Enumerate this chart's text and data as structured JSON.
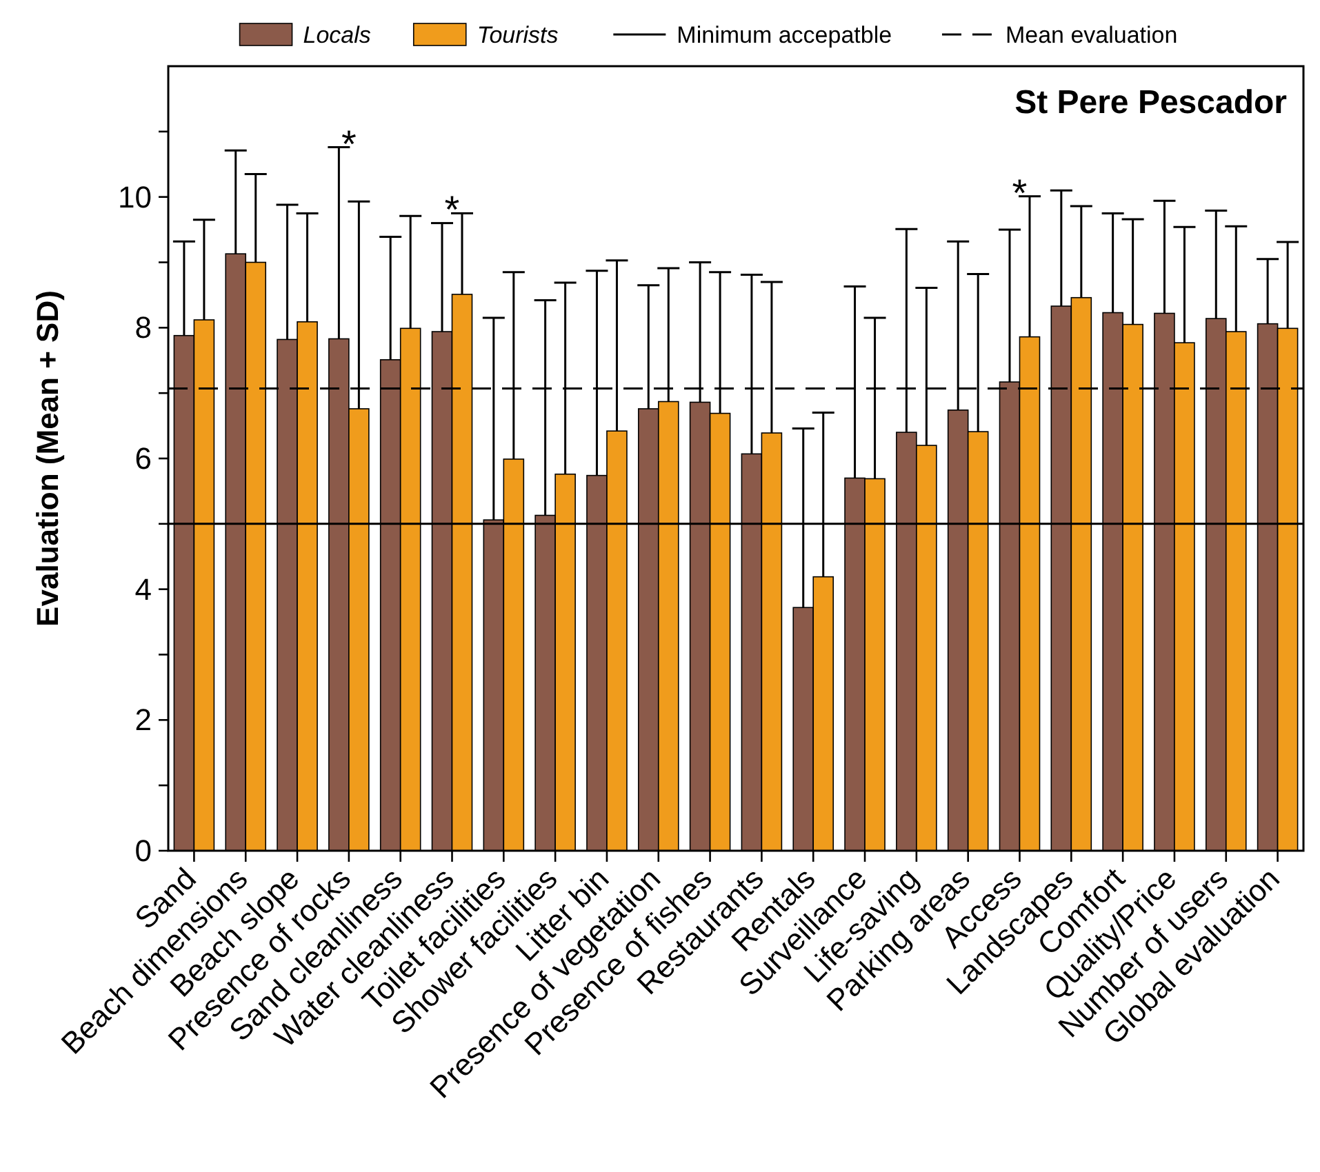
{
  "chart_data": {
    "type": "bar",
    "title": "St Pere Pescador",
    "ylabel": "Evaluation (Mean + SD)",
    "categories": [
      "Sand",
      "Beach dimensions",
      "Beach slope",
      "Presence of rocks",
      "Sand cleanliness",
      "Water cleanliness",
      "Toilet facilities",
      "Shower facilities",
      "Litter bin",
      "Presence of vegetation",
      "Presence of fishes",
      "Restaurants",
      "Rentals",
      "Surveillance",
      "Life-saving",
      "Parking areas",
      "Access",
      "Landscapes",
      "Comfort",
      "Quality/Price",
      "Number of users",
      "Global evaluation"
    ],
    "series": [
      {
        "name": "Locals",
        "color": "#8b5a4a",
        "values": [
          7.88,
          9.13,
          7.82,
          7.83,
          7.51,
          7.94,
          5.06,
          5.13,
          5.74,
          6.76,
          6.86,
          6.07,
          3.72,
          5.7,
          6.4,
          6.74,
          7.17,
          8.33,
          8.23,
          8.22,
          8.14,
          8.06
        ],
        "errors": [
          [
            7.88,
            9.32
          ],
          [
            9.13,
            10.71
          ],
          [
            7.82,
            9.88
          ],
          [
            7.83,
            10.76
          ],
          [
            7.51,
            9.39
          ],
          [
            7.94,
            9.6
          ],
          [
            5.06,
            8.15
          ],
          [
            5.13,
            8.42
          ],
          [
            5.74,
            8.87
          ],
          [
            6.76,
            8.65
          ],
          [
            6.86,
            9.0
          ],
          [
            6.07,
            8.81
          ],
          [
            3.72,
            6.46
          ],
          [
            5.7,
            8.63
          ],
          [
            6.4,
            9.51
          ],
          [
            6.74,
            9.32
          ],
          [
            7.17,
            9.5
          ],
          [
            8.33,
            10.1
          ],
          [
            8.23,
            9.75
          ],
          [
            8.22,
            9.94
          ],
          [
            8.14,
            9.79
          ],
          [
            8.06,
            9.05
          ]
        ]
      },
      {
        "name": "Tourists",
        "color": "#f09c1c",
        "values": [
          8.12,
          9.0,
          8.09,
          6.76,
          7.99,
          8.51,
          5.99,
          5.76,
          6.42,
          6.87,
          6.69,
          6.39,
          4.19,
          5.69,
          6.2,
          6.41,
          7.86,
          8.46,
          8.05,
          7.77,
          7.94,
          7.99
        ],
        "errors": [
          [
            8.12,
            9.65
          ],
          [
            9.0,
            10.35
          ],
          [
            8.09,
            9.75
          ],
          [
            6.76,
            9.93
          ],
          [
            7.99,
            9.71
          ],
          [
            8.51,
            9.75
          ],
          [
            5.99,
            8.85
          ],
          [
            5.76,
            8.69
          ],
          [
            6.42,
            9.03
          ],
          [
            6.87,
            8.91
          ],
          [
            6.69,
            8.85
          ],
          [
            6.39,
            8.7
          ],
          [
            4.19,
            6.7
          ],
          [
            5.69,
            8.15
          ],
          [
            6.2,
            8.61
          ],
          [
            6.41,
            8.82
          ],
          [
            7.86,
            10.01
          ],
          [
            8.46,
            9.86
          ],
          [
            8.05,
            9.66
          ],
          [
            7.77,
            9.54
          ],
          [
            7.94,
            9.55
          ],
          [
            7.99,
            9.31
          ]
        ]
      }
    ],
    "ylim": [
      0,
      12
    ],
    "yticks": [
      0,
      {
        "value": 1,
        "label": null
      },
      2,
      {
        "value": 3,
        "label": null
      },
      4,
      {
        "value": 5,
        "label": null
      },
      6,
      {
        "value": 7,
        "label": null
      },
      8,
      {
        "value": 9,
        "label": null
      },
      10,
      {
        "value": 11,
        "label": null
      }
    ],
    "ref_lines": [
      {
        "axis": "y",
        "value": 5,
        "label": "Minimum accepatble",
        "color": "#000000",
        "line_style": "solid"
      },
      {
        "axis": "y",
        "value": 7.07,
        "label": "Mean evaluation",
        "color": "#000000",
        "line_style": "dashed"
      }
    ],
    "annotations": [
      {
        "text": "*",
        "x": "Presence of rocks"
      },
      {
        "text": "*",
        "x": "Water cleanliness"
      },
      {
        "text": "*",
        "x": "Access"
      }
    ],
    "legend": "top"
  }
}
